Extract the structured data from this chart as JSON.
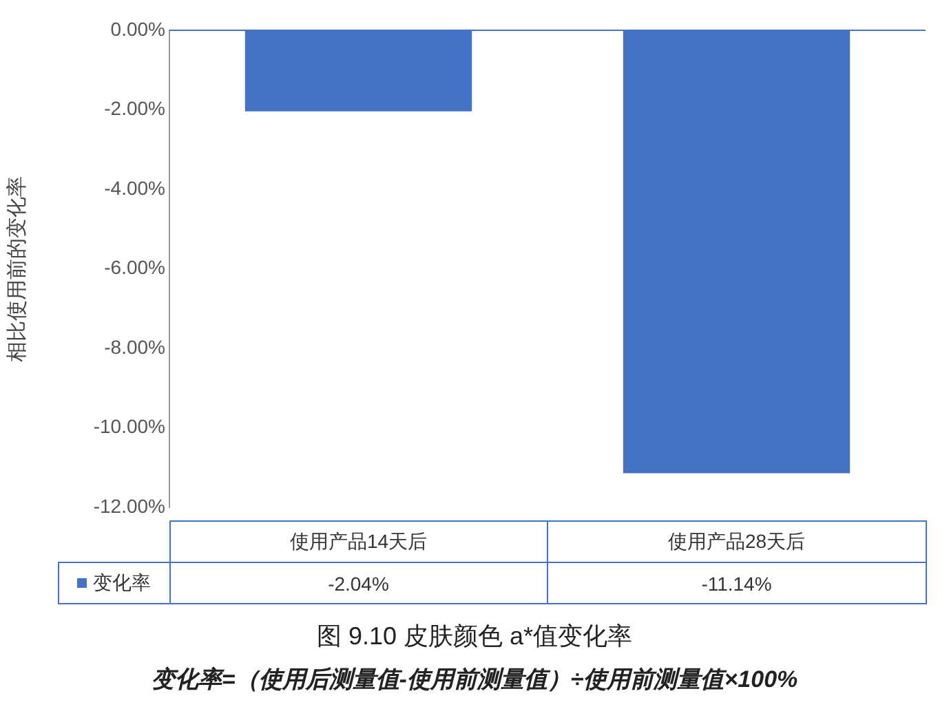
{
  "chart_data": {
    "type": "bar",
    "ylabel": "相比使用前的变化率",
    "categories": [
      "使用产品14天后",
      "使用产品28天后"
    ],
    "series": [
      {
        "name": "变化率",
        "color": "#4472c4",
        "values": [
          -2.04,
          -11.14
        ],
        "value_labels": [
          "-2.04%",
          "-11.14%"
        ]
      }
    ],
    "ylim": [
      -12,
      0
    ],
    "yticks": [
      {
        "value": -12,
        "label": "-12.00%"
      },
      {
        "value": -10,
        "label": "-10.00%"
      },
      {
        "value": -8,
        "label": "-8.00%"
      },
      {
        "value": -6,
        "label": "-6.00%"
      },
      {
        "value": -4,
        "label": "-4.00%"
      },
      {
        "value": -2,
        "label": "-2.00%"
      },
      {
        "value": 0,
        "label": "0.00%"
      }
    ],
    "grid": false,
    "legend": "bottom",
    "annotations": [
      "图 9.10 皮肤颜色 a*值变化率",
      "变化率=（使用后测量值-使用前测量值）÷使用前测量值×100%"
    ]
  }
}
